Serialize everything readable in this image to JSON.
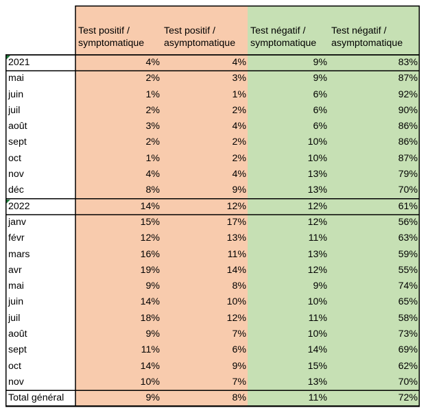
{
  "headers": [
    "",
    "Test positif / symptomatique",
    "Test positif / asymptomatique",
    "Test négatif / symptomatique",
    "Test négatif / asymptomatique"
  ],
  "rows": [
    {
      "label": "2021",
      "kind": "group",
      "v": [
        "4%",
        "4%",
        "9%",
        "83%"
      ]
    },
    {
      "label": "mai",
      "kind": "item",
      "v": [
        "2%",
        "3%",
        "9%",
        "87%"
      ]
    },
    {
      "label": "juin",
      "kind": "item",
      "v": [
        "1%",
        "1%",
        "6%",
        "92%"
      ]
    },
    {
      "label": "juil",
      "kind": "item",
      "v": [
        "2%",
        "2%",
        "6%",
        "90%"
      ]
    },
    {
      "label": "août",
      "kind": "item",
      "v": [
        "3%",
        "4%",
        "6%",
        "86%"
      ]
    },
    {
      "label": "sept",
      "kind": "item",
      "v": [
        "2%",
        "2%",
        "10%",
        "86%"
      ]
    },
    {
      "label": "oct",
      "kind": "item",
      "v": [
        "1%",
        "2%",
        "10%",
        "87%"
      ]
    },
    {
      "label": "nov",
      "kind": "item",
      "v": [
        "4%",
        "4%",
        "13%",
        "79%"
      ]
    },
    {
      "label": "déc",
      "kind": "item",
      "v": [
        "8%",
        "9%",
        "13%",
        "70%"
      ]
    },
    {
      "label": "2022",
      "kind": "group",
      "v": [
        "14%",
        "12%",
        "12%",
        "61%"
      ]
    },
    {
      "label": "janv",
      "kind": "item",
      "v": [
        "15%",
        "17%",
        "12%",
        "56%"
      ]
    },
    {
      "label": "févr",
      "kind": "item",
      "v": [
        "12%",
        "13%",
        "11%",
        "63%"
      ]
    },
    {
      "label": "mars",
      "kind": "item",
      "v": [
        "16%",
        "11%",
        "13%",
        "59%"
      ]
    },
    {
      "label": "avr",
      "kind": "item",
      "v": [
        "19%",
        "14%",
        "12%",
        "55%"
      ]
    },
    {
      "label": "mai",
      "kind": "item",
      "v": [
        "9%",
        "8%",
        "9%",
        "74%"
      ]
    },
    {
      "label": "juin",
      "kind": "item",
      "v": [
        "14%",
        "10%",
        "10%",
        "65%"
      ]
    },
    {
      "label": "juil",
      "kind": "item",
      "v": [
        "18%",
        "12%",
        "11%",
        "58%"
      ]
    },
    {
      "label": "août",
      "kind": "item",
      "v": [
        "9%",
        "7%",
        "10%",
        "73%"
      ]
    },
    {
      "label": "sept",
      "kind": "item",
      "v": [
        "11%",
        "6%",
        "14%",
        "69%"
      ]
    },
    {
      "label": "oct",
      "kind": "item",
      "v": [
        "14%",
        "9%",
        "15%",
        "62%"
      ]
    },
    {
      "label": "nov",
      "kind": "item",
      "v": [
        "10%",
        "7%",
        "13%",
        "70%"
      ]
    },
    {
      "label": "Total général",
      "kind": "total",
      "v": [
        "9%",
        "8%",
        "11%",
        "72%"
      ]
    }
  ],
  "colors": {
    "positive_fill": "#f8cbad",
    "negative_fill": "#c6e0b4",
    "border": "#000000",
    "group_marker": "#1f7a3c"
  }
}
